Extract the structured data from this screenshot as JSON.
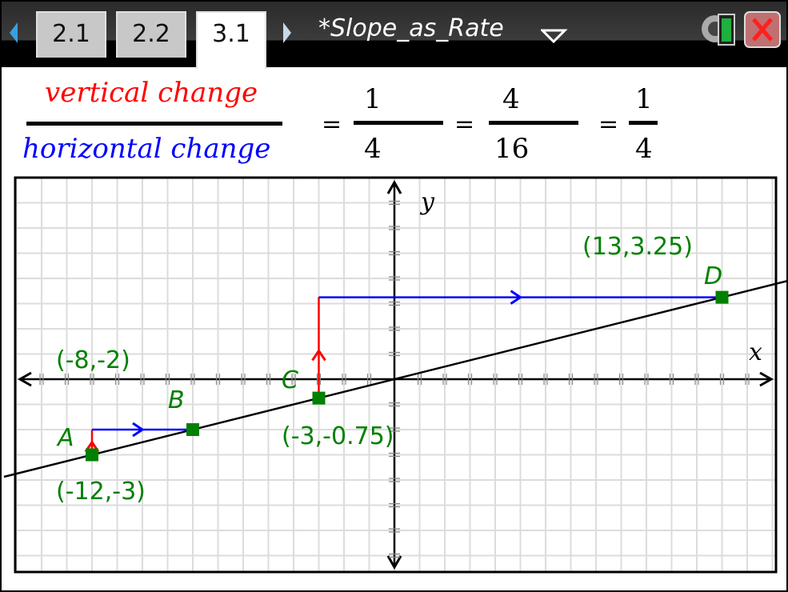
{
  "topbar": {
    "tabs": [
      {
        "label": "2.1"
      },
      {
        "label": "2.2"
      },
      {
        "label": "3.1",
        "active": true
      }
    ],
    "document_title": "*Slope_as_Rate",
    "icons": [
      "left-arrow-icon",
      "right-arrow-icon",
      "dropdown-triangle-icon",
      "settings-battery-icon",
      "close-icon"
    ]
  },
  "formula": {
    "numerator_label": "vertical change",
    "denominator_label": "horizontal change",
    "numerator_color": "#ff0000",
    "denominator_color": "#0000ff",
    "fractions": [
      {
        "num": "1",
        "den": "4"
      },
      {
        "num": "4",
        "den": "16"
      },
      {
        "num": "1",
        "den": "4"
      }
    ],
    "equals": "="
  },
  "graph": {
    "x_axis_label": "x",
    "y_axis_label": "y",
    "x_range": [
      -15,
      15
    ],
    "y_range": [
      -7.6,
      8
    ],
    "grid": true,
    "line": {
      "slope": 0.25,
      "intercept": 0
    },
    "point_color": "#008000",
    "points": [
      {
        "name": "A",
        "x": -12,
        "y": -3,
        "label": "(-12,-3)"
      },
      {
        "name": "B",
        "x": -8,
        "y": -2,
        "label": "(-8,-2)"
      },
      {
        "name": "C",
        "x": -3,
        "y": -0.75,
        "label": "(-3,-0.75)"
      },
      {
        "name": "D",
        "x": 13,
        "y": 3.25,
        "label": "(13,3.25)"
      }
    ]
  }
}
